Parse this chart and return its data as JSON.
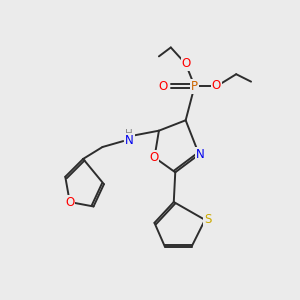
{
  "bg_color": "#ebebeb",
  "bond_color": "#2d2d2d",
  "atom_colors": {
    "O": "#ff0000",
    "N": "#0000ee",
    "S": "#ccaa00",
    "P": "#cc6600",
    "H": "#888888",
    "C": "#2d2d2d"
  },
  "figsize": [
    3.0,
    3.0
  ],
  "dpi": 100
}
